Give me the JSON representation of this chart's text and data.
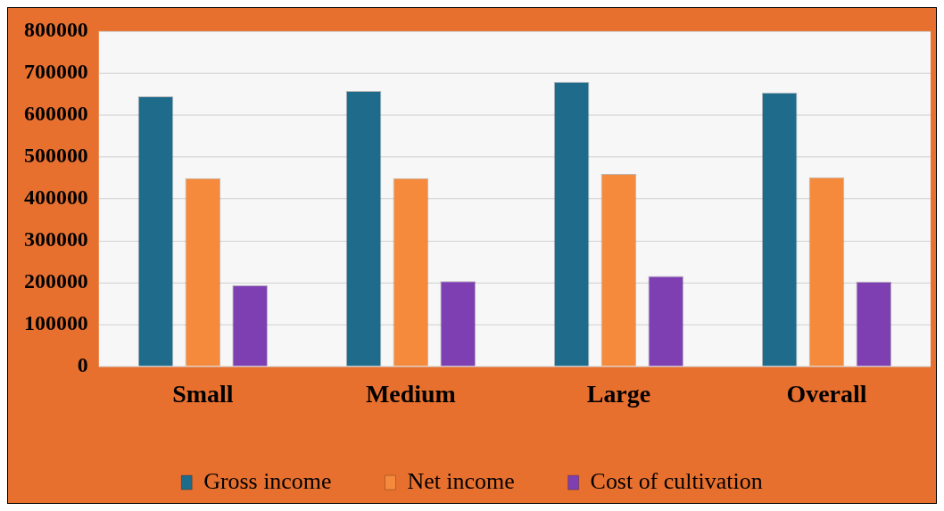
{
  "chart_data": {
    "type": "bar",
    "categories": [
      "Small",
      "Medium",
      "Large",
      "Overall"
    ],
    "series": [
      {
        "name": "Gross income",
        "color": "#1f6b8c",
        "values": [
          645000,
          658000,
          680000,
          654000
        ]
      },
      {
        "name": "Net income",
        "color": "#f58a3c",
        "values": [
          450000,
          450000,
          460000,
          452000
        ]
      },
      {
        "name": "Cost of cultivation",
        "color": "#7e3fb3",
        "values": [
          194000,
          204000,
          216000,
          203000
        ]
      }
    ],
    "ylim": [
      0,
      800000
    ],
    "yticks": [
      0,
      100000,
      200000,
      300000,
      400000,
      500000,
      600000,
      700000,
      800000
    ],
    "grid": "y",
    "legend": "bottom"
  }
}
